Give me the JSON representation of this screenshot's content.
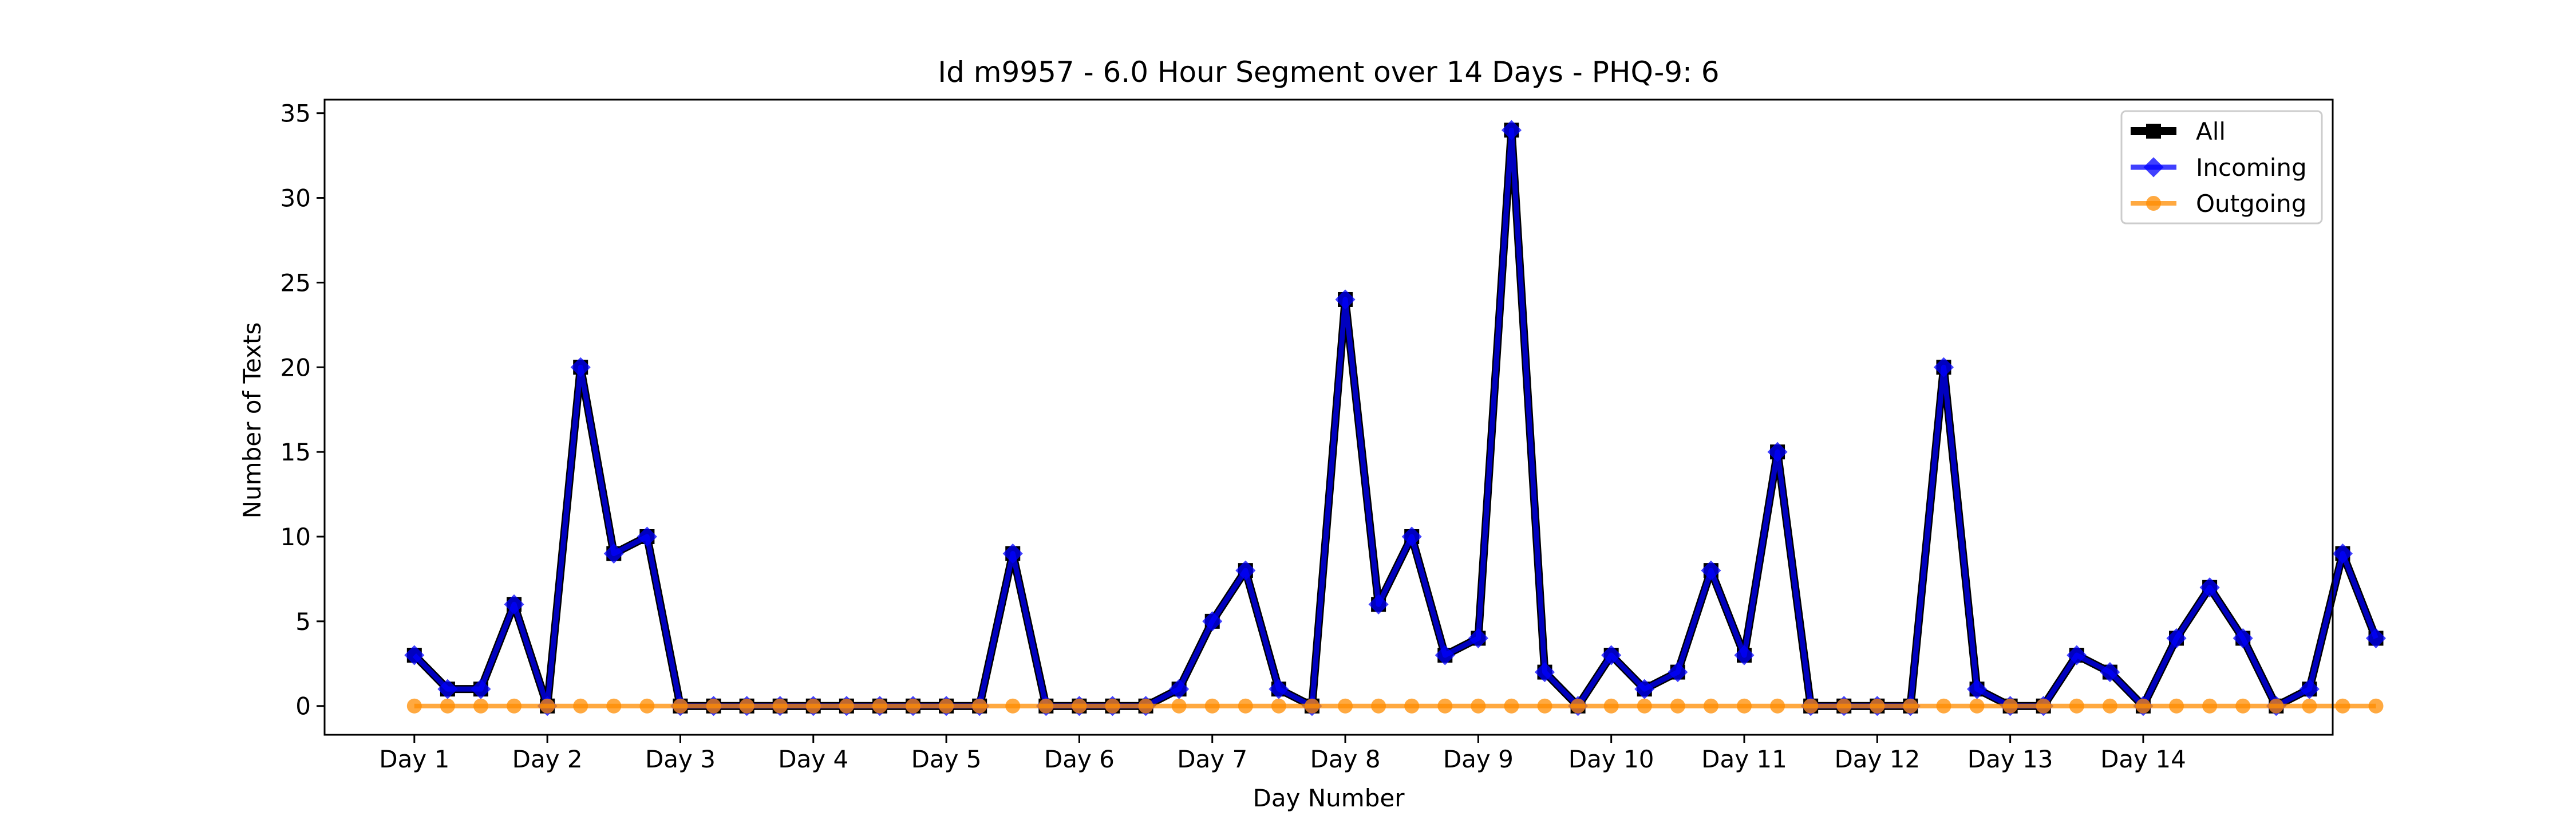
{
  "chart_data": {
    "type": "line",
    "title": "Id m9957 - 6.0 Hour Segment over 14 Days - PHQ-9: 6",
    "xlabel": "Day Number",
    "ylabel": "Number of Texts",
    "xlim": [
      -2.7,
      57.7
    ],
    "ylim": [
      -1.7,
      35.8
    ],
    "grid": false,
    "legend_position": "top-right",
    "x_ticks": [
      {
        "value": 0,
        "label": "Day 1"
      },
      {
        "value": 4,
        "label": "Day 2"
      },
      {
        "value": 8,
        "label": "Day 3"
      },
      {
        "value": 12,
        "label": "Day 4"
      },
      {
        "value": 16,
        "label": "Day 5"
      },
      {
        "value": 20,
        "label": "Day 6"
      },
      {
        "value": 24,
        "label": "Day 7"
      },
      {
        "value": 28,
        "label": "Day 8"
      },
      {
        "value": 32,
        "label": "Day 9"
      },
      {
        "value": 36,
        "label": "Day 10"
      },
      {
        "value": 40,
        "label": "Day 11"
      },
      {
        "value": 44,
        "label": "Day 12"
      },
      {
        "value": 48,
        "label": "Day 13"
      },
      {
        "value": 52,
        "label": "Day 14"
      }
    ],
    "y_ticks": [
      0,
      5,
      10,
      15,
      20,
      25,
      30,
      35
    ],
    "series": [
      {
        "name": "All",
        "color": "#000000",
        "marker": "square",
        "values": [
          3,
          1,
          1,
          6,
          0,
          20,
          9,
          10,
          0,
          0,
          0,
          0,
          0,
          0,
          0,
          0,
          0,
          0,
          9,
          0,
          0,
          0,
          0,
          1,
          5,
          8,
          1,
          0,
          24,
          6,
          10,
          3,
          4,
          34,
          2,
          0,
          3,
          1,
          2,
          8,
          3,
          15,
          0,
          0,
          0,
          0,
          20,
          1,
          0,
          0,
          3,
          2,
          0,
          4,
          7,
          4,
          0,
          1,
          9,
          4
        ]
      },
      {
        "name": "Incoming",
        "color": "#0000ff",
        "marker": "diamond",
        "values": [
          3,
          1,
          1,
          6,
          0,
          20,
          9,
          10,
          0,
          0,
          0,
          0,
          0,
          0,
          0,
          0,
          0,
          0,
          9,
          0,
          0,
          0,
          0,
          1,
          5,
          8,
          1,
          0,
          24,
          6,
          10,
          3,
          4,
          34,
          2,
          0,
          3,
          1,
          2,
          8,
          3,
          15,
          0,
          0,
          0,
          0,
          20,
          1,
          0,
          0,
          3,
          2,
          0,
          4,
          7,
          4,
          0,
          1,
          9,
          4
        ]
      },
      {
        "name": "Outgoing",
        "color": "#ff8c00",
        "marker": "circle",
        "values": [
          0,
          0,
          0,
          0,
          0,
          0,
          0,
          0,
          0,
          0,
          0,
          0,
          0,
          0,
          0,
          0,
          0,
          0,
          0,
          0,
          0,
          0,
          0,
          0,
          0,
          0,
          0,
          0,
          0,
          0,
          0,
          0,
          0,
          0,
          0,
          0,
          0,
          0,
          0,
          0,
          0,
          0,
          0,
          0,
          0,
          0,
          0,
          0,
          0,
          0,
          0,
          0,
          0,
          0,
          0,
          0,
          0,
          0,
          0,
          0
        ]
      }
    ]
  }
}
